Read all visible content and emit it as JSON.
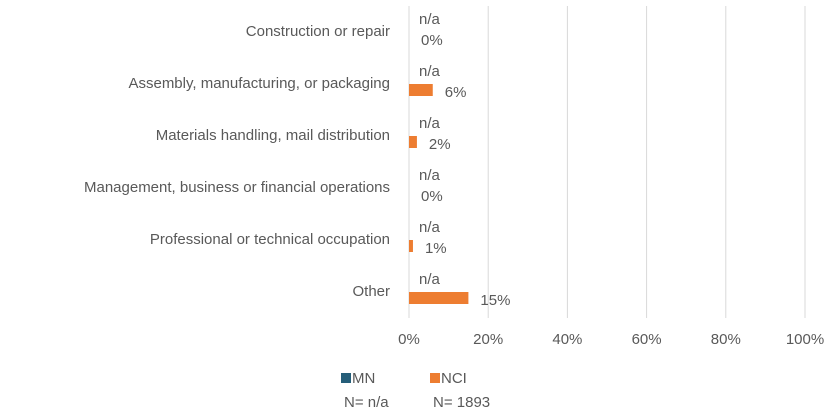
{
  "chart_data": {
    "type": "hbar",
    "categories": [
      "Construction or repair",
      "Assembly, manufacturing, or packaging",
      "Materials handling, mail distribution",
      "Management, business or financial operations",
      "Professional or technical occupation",
      "Other"
    ],
    "series": [
      {
        "name": "MN",
        "color": "#255e79",
        "n_label": "N= n/a",
        "values": [
          null,
          null,
          null,
          null,
          null,
          null
        ],
        "value_labels": [
          "n/a",
          "n/a",
          "n/a",
          "n/a",
          "n/a",
          "n/a"
        ]
      },
      {
        "name": "NCI",
        "color": "#ed7d31",
        "n_label": "N= 1893",
        "values": [
          0,
          6,
          2,
          0,
          1,
          15
        ],
        "value_labels": [
          "0%",
          "6%",
          "2%",
          "0%",
          "1%",
          "15%"
        ]
      }
    ],
    "xlim": [
      0,
      100
    ],
    "xticks": [
      {
        "value": 0,
        "label": "0%"
      },
      {
        "value": 20,
        "label": "20%"
      },
      {
        "value": 40,
        "label": "40%"
      },
      {
        "value": 60,
        "label": "60%"
      },
      {
        "value": 80,
        "label": "80%"
      },
      {
        "value": 100,
        "label": "100%"
      }
    ],
    "grid": true,
    "legend": "bottom"
  }
}
